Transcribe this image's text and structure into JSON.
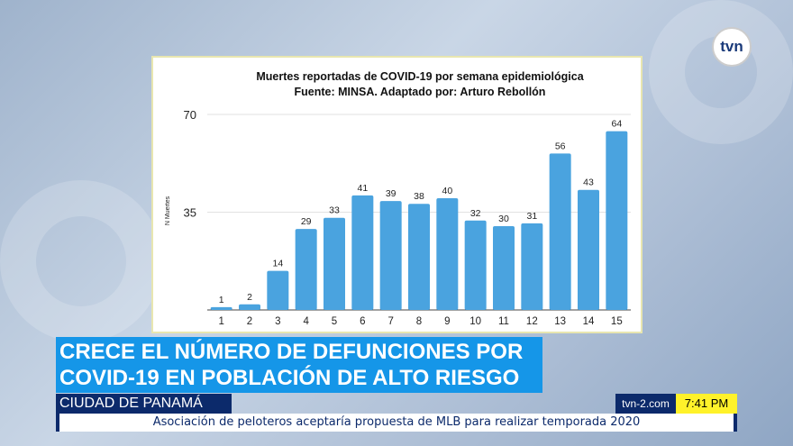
{
  "logo": "tvn",
  "headline": {
    "line1": "CRECE EL NÚMERO DE DEFUNCIONES POR",
    "line2": "COVID-19 EN POBLACIÓN DE ALTO RIESGO"
  },
  "location": "CIUDAD DE PANAMÁ",
  "site": "tvn-2.com",
  "time": "7:41 PM",
  "ticker": "Asociación de peloteros aceptaría propuesta de MLB para realizar temporada 2020",
  "colors": {
    "bar": "#4aa3df",
    "headline_bg": "#1596e8",
    "navy": "#0c2a6b",
    "time_bg": "#fff22a"
  },
  "chart_data": {
    "type": "bar",
    "title": "Muertes reportadas de COVID-19 por semana epidemiológica",
    "subtitle": "Fuente: MINSA. Adaptado por: Arturo Rebollón",
    "ylabel": "N Muertes",
    "xlabel": "",
    "ylim": [
      0,
      70
    ],
    "yticks": [
      35,
      70
    ],
    "grid": true,
    "categories": [
      "1",
      "2",
      "3",
      "4",
      "5",
      "6",
      "7",
      "8",
      "9",
      "10",
      "11",
      "12",
      "13",
      "14",
      "15"
    ],
    "values": [
      1,
      2,
      14,
      29,
      33,
      41,
      39,
      38,
      40,
      32,
      30,
      31,
      56,
      43,
      64
    ]
  }
}
